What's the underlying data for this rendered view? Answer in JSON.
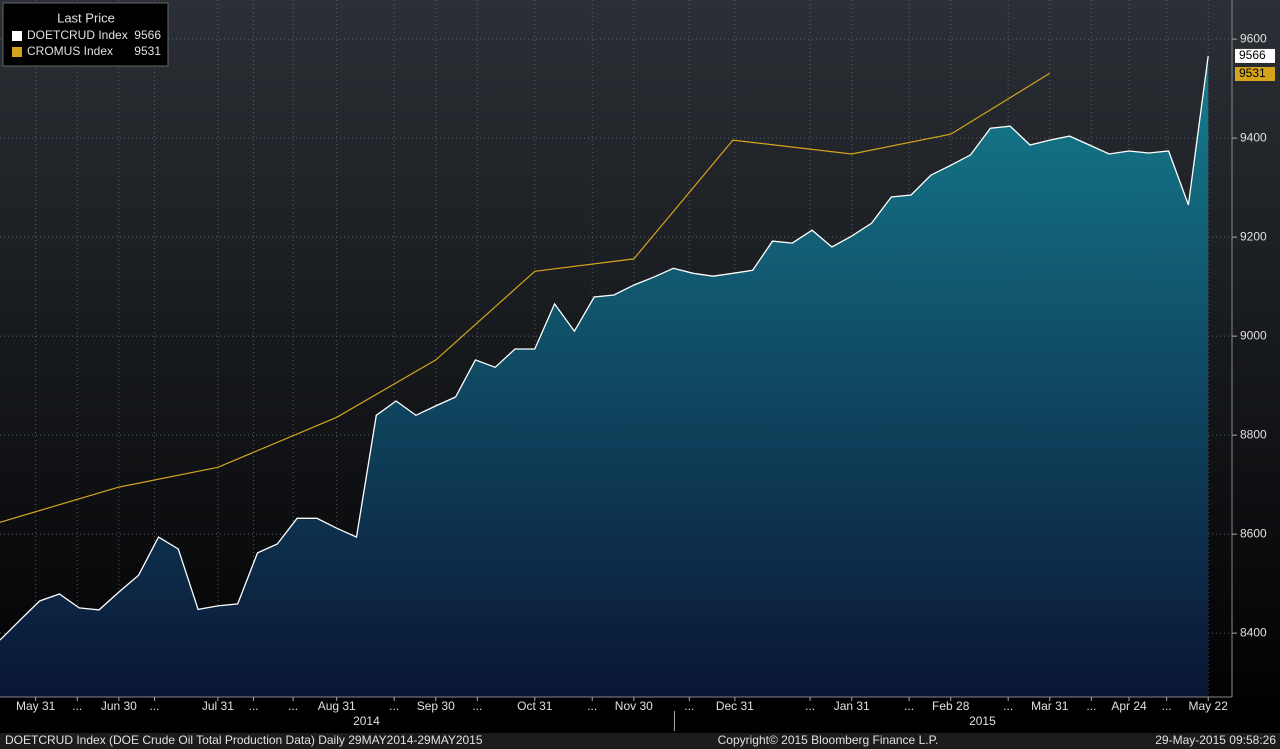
{
  "chart_data": {
    "type": "area",
    "legend_title": "Last Price",
    "legend": "upper left",
    "series": [
      {
        "name": "DOETCRUD Index",
        "color": "#ffffff",
        "values": [
          8386,
          8426,
          8465,
          8479,
          8451,
          8447,
          8483,
          8517,
          8594,
          8570,
          8448,
          8455,
          8459,
          8562,
          8580,
          8632,
          8632,
          8612,
          8594,
          8840,
          8869,
          8840,
          8859,
          8877,
          8952,
          8937,
          8974,
          8974,
          9065,
          9010,
          9079,
          9083,
          9103,
          9119,
          9137,
          9127,
          9121,
          9127,
          9133,
          9192,
          9188,
          9214,
          9180,
          9202,
          9228,
          9281,
          9285,
          9325,
          9345,
          9366,
          9420,
          9424,
          9386,
          9396,
          9404,
          9386,
          9368,
          9374,
          9370,
          9374,
          9265,
          9566
        ]
      },
      {
        "name": "CROMUS Index",
        "color": "#d4a51c",
        "x": [
          0,
          6,
          11,
          17,
          22,
          27,
          32,
          37,
          43,
          48,
          53
        ],
        "values": [
          8624,
          8695,
          8735,
          8836,
          8952,
          9131,
          9156,
          9396,
          9368,
          9408,
          9531
        ]
      }
    ],
    "xlim": [
      0,
      62.2
    ],
    "xticks": [
      {
        "value": 1.8,
        "label": "May 31"
      },
      {
        "value": 3.9,
        "label": "..."
      },
      {
        "value": 6.0,
        "label": "Jun 30"
      },
      {
        "value": 7.8,
        "label": "..."
      },
      {
        "value": 11.0,
        "label": "Jul 31"
      },
      {
        "value": 12.8,
        "label": "..."
      },
      {
        "value": 14.8,
        "label": "..."
      },
      {
        "value": 17.0,
        "label": "Aug 31"
      },
      {
        "value": 19.9,
        "label": "..."
      },
      {
        "value": 22.0,
        "label": "Sep 30"
      },
      {
        "value": 24.1,
        "label": "..."
      },
      {
        "value": 27.0,
        "label": "Oct 31"
      },
      {
        "value": 29.9,
        "label": "..."
      },
      {
        "value": 32.0,
        "label": "Nov 30"
      },
      {
        "value": 34.8,
        "label": "..."
      },
      {
        "value": 37.1,
        "label": "Dec 31"
      },
      {
        "value": 40.9,
        "label": "..."
      },
      {
        "value": 43.0,
        "label": "Jan 31"
      },
      {
        "value": 45.9,
        "label": "..."
      },
      {
        "value": 48.0,
        "label": "Feb 28"
      },
      {
        "value": 50.9,
        "label": "..."
      },
      {
        "value": 53.0,
        "label": "Mar 31"
      },
      {
        "value": 55.1,
        "label": "..."
      },
      {
        "value": 57.0,
        "label": "Apr 24"
      },
      {
        "value": 58.9,
        "label": "..."
      },
      {
        "value": 61.0,
        "label": "May 22"
      }
    ],
    "year_labels": [
      {
        "value": 18.5,
        "label": "2014"
      },
      {
        "value": 49.6,
        "label": "2015"
      }
    ],
    "ylim": [
      8271,
      9679
    ],
    "yticks": [
      8400,
      8600,
      8800,
      9000,
      9200,
      9400,
      9600
    ],
    "grid": true,
    "footer": {
      "description": "DOETCRUD Index (DOE Crude Oil Total Production Data)  Daily 29MAY2014-29MAY2015",
      "copyright": "Copyright© 2015 Bloomberg Finance L.P.",
      "timestamp": "29-May-2015 09:58:26"
    }
  }
}
